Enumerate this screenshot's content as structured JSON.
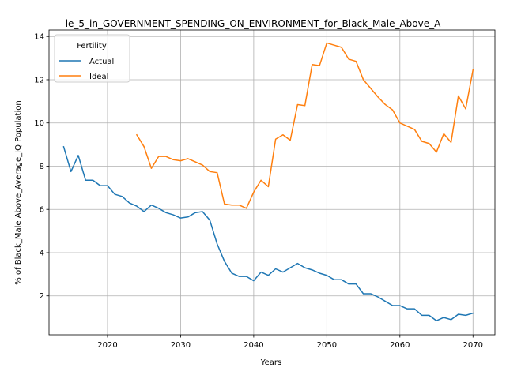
{
  "chart_data": {
    "type": "line",
    "title": "le_5_in_GOVERNMENT_SPENDING_ON_ENVIRONMENT_for_Black_Male_Above_A",
    "xlabel": "Years",
    "ylabel": "% of Black_Male Above_Average_IQ Population",
    "xlim": [
      2012,
      2073
    ],
    "ylim": [
      0.2,
      14.3
    ],
    "xticks": [
      2020,
      2030,
      2040,
      2050,
      2060,
      2070
    ],
    "yticks": [
      2,
      4,
      6,
      8,
      10,
      12,
      14
    ],
    "grid": true,
    "legend": {
      "title": "Fertility",
      "placement": "top-left"
    },
    "series": [
      {
        "name": "Actual",
        "color": "#1f77b4",
        "x": [
          2014,
          2015,
          2016,
          2017,
          2018,
          2019,
          2020,
          2021,
          2022,
          2023,
          2024,
          2025,
          2026,
          2027,
          2028,
          2029,
          2030,
          2031,
          2032,
          2033,
          2034,
          2035,
          2036,
          2037,
          2038,
          2039,
          2040,
          2041,
          2042,
          2043,
          2044,
          2045,
          2046,
          2047,
          2048,
          2049,
          2050,
          2051,
          2052,
          2053,
          2054,
          2055,
          2056,
          2057,
          2058,
          2059,
          2060,
          2061,
          2062,
          2063,
          2064,
          2065,
          2066,
          2067,
          2068,
          2069,
          2070
        ],
        "y": [
          8.9,
          7.75,
          8.5,
          7.35,
          7.35,
          7.1,
          7.1,
          6.7,
          6.6,
          6.3,
          6.15,
          5.9,
          6.2,
          6.05,
          5.85,
          5.75,
          5.6,
          5.65,
          5.85,
          5.9,
          5.5,
          4.4,
          3.6,
          3.05,
          2.9,
          2.9,
          2.7,
          3.1,
          2.95,
          3.25,
          3.1,
          3.3,
          3.5,
          3.3,
          3.2,
          3.05,
          2.95,
          2.75,
          2.75,
          2.55,
          2.55,
          2.1,
          2.1,
          1.95,
          1.75,
          1.55,
          1.55,
          1.4,
          1.4,
          1.1,
          1.1,
          0.85,
          1.0,
          0.9,
          1.15,
          1.1,
          1.2
        ]
      },
      {
        "name": "Ideal",
        "color": "#ff7f0e",
        "x": [
          2024,
          2025,
          2026,
          2027,
          2028,
          2029,
          2030,
          2031,
          2032,
          2033,
          2034,
          2035,
          2036,
          2037,
          2038,
          2039,
          2040,
          2041,
          2042,
          2043,
          2044,
          2045,
          2046,
          2047,
          2048,
          2049,
          2050,
          2051,
          2052,
          2053,
          2054,
          2055,
          2056,
          2057,
          2058,
          2059,
          2060,
          2061,
          2062,
          2063,
          2064,
          2065,
          2066,
          2067,
          2068,
          2069,
          2070
        ],
        "y": [
          9.45,
          8.9,
          7.9,
          8.45,
          8.45,
          8.3,
          8.25,
          8.35,
          8.2,
          8.05,
          7.75,
          7.7,
          6.25,
          6.2,
          6.2,
          6.05,
          6.8,
          7.35,
          7.05,
          9.25,
          9.45,
          9.2,
          10.85,
          10.8,
          12.7,
          12.65,
          13.7,
          13.6,
          13.5,
          12.95,
          12.85,
          12.0,
          11.6,
          11.2,
          10.85,
          10.6,
          10.0,
          9.85,
          9.7,
          9.15,
          9.05,
          8.65,
          9.5,
          9.1,
          11.25,
          10.65,
          12.45
        ]
      }
    ]
  }
}
